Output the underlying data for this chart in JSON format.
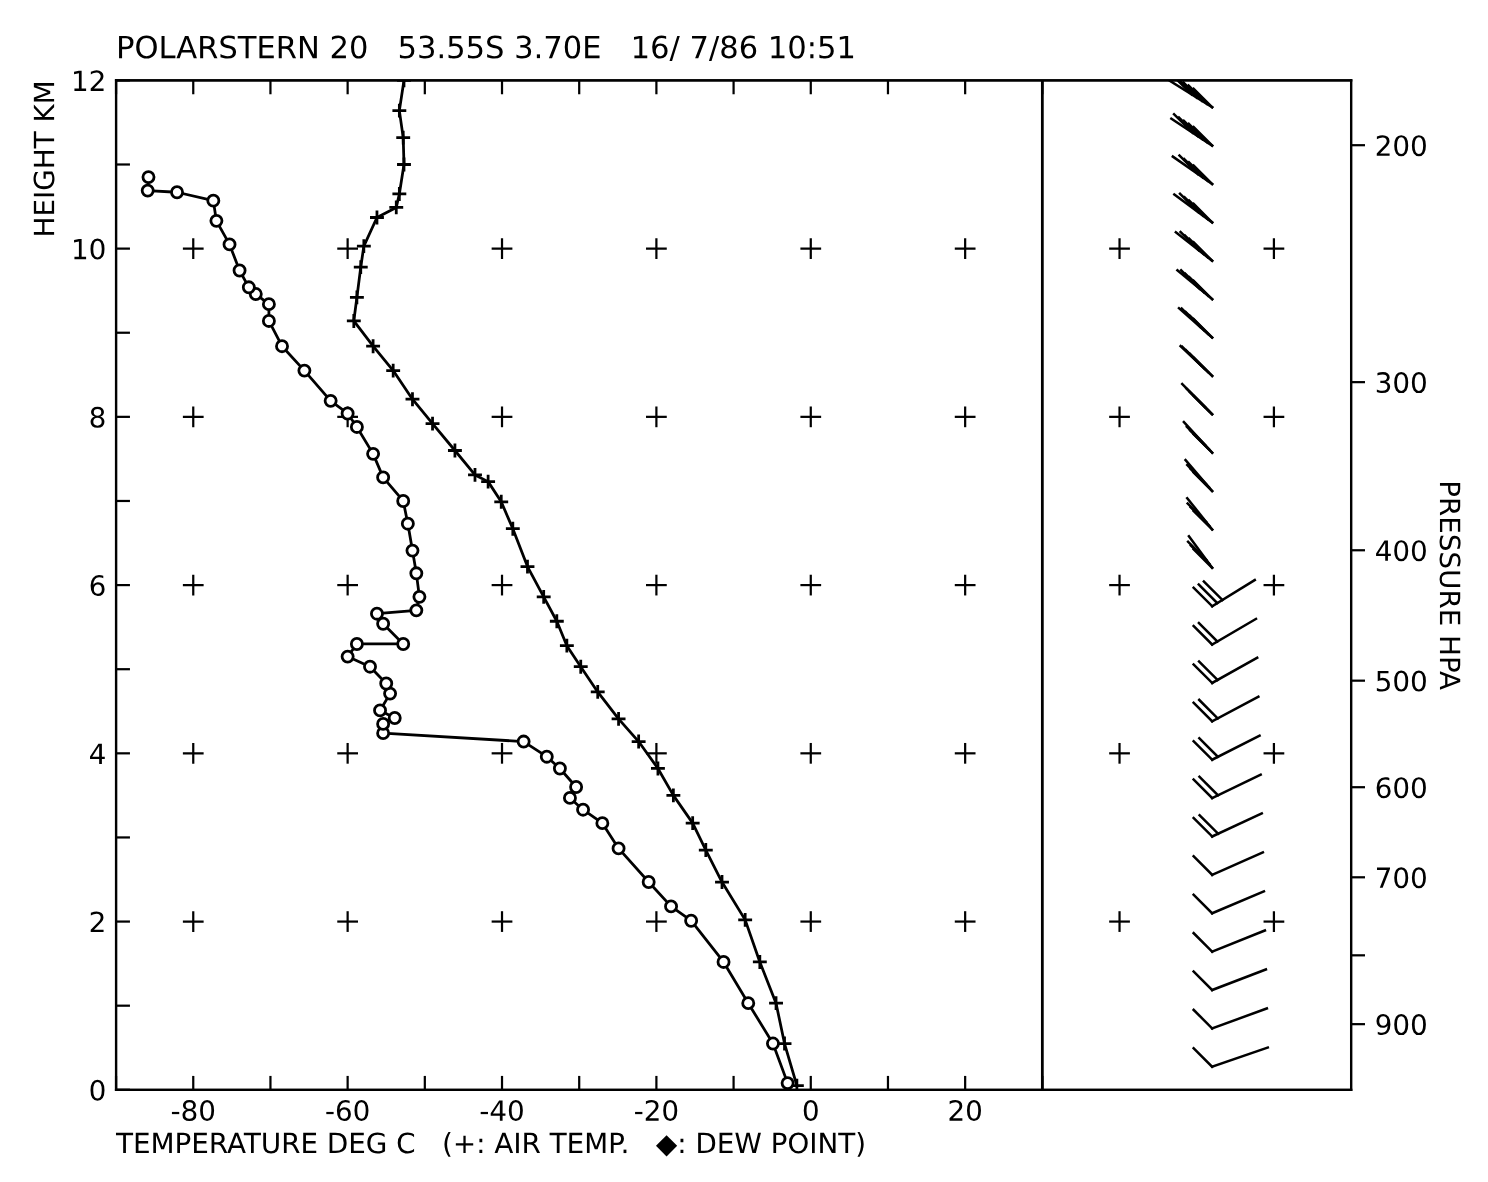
{
  "chart_data": {
    "type": "line",
    "title": "POLARSTERN 20   53.55S 3.70E   16/ 7/86 10:51",
    "xlabel": "TEMPERATURE DEG C   (+: AIR TEMP.   ◆: DEW POINT)",
    "ylabel": "HEIGHT KM",
    "y2label": "PRESSURE HPA",
    "xlim": [
      -90,
      70
    ],
    "ylim": [
      0,
      12
    ],
    "y2lim": [
      1007,
      179
    ],
    "log": "y2",
    "xticks": [
      {
        "value": -90,
        "label": null
      },
      -80,
      {
        "value": -70,
        "label": null
      },
      -60,
      {
        "value": -50,
        "label": null
      },
      -40,
      {
        "value": -30,
        "label": null
      },
      -20,
      {
        "value": -10,
        "label": null
      },
      0,
      {
        "value": 10,
        "label": null
      },
      20,
      {
        "value": 30,
        "label": null
      }
    ],
    "yticks": [
      0,
      {
        "value": 1,
        "label": null
      },
      2,
      {
        "value": 3,
        "label": null
      },
      4,
      {
        "value": 5,
        "label": null
      },
      6,
      {
        "value": 7,
        "label": null
      },
      8,
      {
        "value": 9,
        "label": null
      },
      10,
      {
        "value": 11,
        "label": null
      },
      12
    ],
    "y2ticks": [
      200,
      300,
      400,
      500,
      600,
      700,
      {
        "value": 800,
        "label": null
      },
      900
    ],
    "line_style": "solid",
    "ref_lines": [
      {
        "axis": "x",
        "value": 30,
        "color": "#000000"
      }
    ],
    "series": [
      {
        "color": "#000000",
        "marker": "cross",
        "x": [
          -1.8,
          -3.4,
          -4.5,
          -6.6,
          -8.5,
          -11.5,
          -13.6,
          -15.3,
          -17.8,
          -19.8,
          -22.3,
          -24.9,
          -27.6,
          -29.8,
          -31.6,
          -32.9,
          -34.6,
          -36.7,
          -38.6,
          -40.1,
          -41.8,
          -43.5,
          -46.1,
          -49,
          -51.6,
          -54.1,
          -56.7,
          -59.2,
          -58.8,
          -58.3,
          -57.9,
          -56.2,
          -53.7,
          -53.3,
          -52.7,
          -52.8,
          -53.3,
          -52.7
        ],
        "values": [
          0.05,
          0.55,
          1.03,
          1.52,
          2.02,
          2.47,
          2.85,
          3.17,
          3.5,
          3.82,
          4.14,
          4.41,
          4.73,
          5.03,
          5.28,
          5.57,
          5.86,
          6.22,
          6.67,
          6.99,
          7.23,
          7.31,
          7.6,
          7.92,
          8.21,
          8.55,
          8.84,
          9.14,
          9.42,
          9.78,
          10.03,
          10.37,
          10.49,
          10.65,
          11.0,
          11.32,
          11.64,
          12.0
        ]
      },
      {
        "color": "#000000",
        "marker": "circle",
        "x": [
          -3,
          -4.9,
          -8.1,
          -11.3,
          -15.5,
          -18.1,
          -21,
          -24.9,
          -27,
          -29.5,
          -31.2,
          -30.4,
          -32.5,
          -34.2,
          -37.2,
          -55.4,
          -55.4,
          -53.9,
          -55.8,
          -54.5,
          -55,
          -57.1,
          -60,
          -58.8,
          -52.8,
          -55.4,
          -56.2,
          -51.1,
          -50.7,
          -51.1,
          -51.6,
          -52.2,
          -52.8,
          -55.4,
          -56.7,
          -58.8,
          -60,
          -62.2,
          -65.6,
          -68.5,
          -70.2,
          -70.2,
          -71.9,
          -72.8,
          -74,
          -75.3,
          -77,
          -77.4,
          -82.1,
          -85.9,
          -85.8
        ],
        "values": [
          0.08,
          0.55,
          1.03,
          1.52,
          2.01,
          2.18,
          2.47,
          2.87,
          3.17,
          3.33,
          3.47,
          3.6,
          3.82,
          3.96,
          4.14,
          4.24,
          4.35,
          4.42,
          4.51,
          4.71,
          4.83,
          5.03,
          5.15,
          5.3,
          5.3,
          5.54,
          5.66,
          5.7,
          5.86,
          6.14,
          6.41,
          6.73,
          7.0,
          7.28,
          7.56,
          7.88,
          8.04,
          8.19,
          8.55,
          8.84,
          9.14,
          9.34,
          9.46,
          9.54,
          9.74,
          10.05,
          10.33,
          10.57,
          10.67,
          10.69,
          10.85
        ]
      }
    ]
  }
}
